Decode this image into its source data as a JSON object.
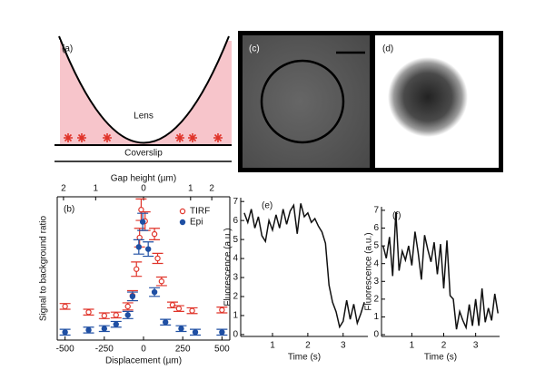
{
  "diagram": {
    "label": "(a)",
    "lens_label": "Lens",
    "coverslip_label": "Coverslip"
  },
  "images": [
    {
      "label": "(c)"
    },
    {
      "label": "(d)"
    }
  ],
  "chart_data": [
    {
      "type": "scatter",
      "panel_label": "(b)",
      "xlabel": "Displacement (µm)",
      "ylabel": "Signal to background ratio",
      "x2label": "Gap height (µm)",
      "xlim": [
        -550,
        550
      ],
      "xticks": [
        -500,
        -250,
        0,
        250,
        500
      ],
      "ylim": [
        0,
        20
      ],
      "x2ticks": [
        {
          "value": -510,
          "label": "2"
        },
        {
          "value": -305,
          "label": "1"
        },
        {
          "value": 0,
          "label": "0"
        },
        {
          "value": 300,
          "label": "1"
        },
        {
          "value": 435,
          "label": "2"
        }
      ],
      "legend": "upper right",
      "series": [
        {
          "name": "TIRF",
          "color": "#e0342a",
          "marker": "open",
          "x": [
            -500,
            -350,
            -250,
            -175,
            -100,
            -70,
            -45,
            -25,
            -15,
            10,
            70,
            90,
            115,
            185,
            225,
            310,
            500
          ],
          "values": [
            4.7,
            3.9,
            3.4,
            3.5,
            4.7,
            6.2,
            9.9,
            14.3,
            18.2,
            16.6,
            14.8,
            11.4,
            8.2,
            4.9,
            4.4,
            4.1,
            4.2
          ],
          "errors": [
            0.4,
            0.4,
            0.4,
            0.4,
            0.5,
            0.7,
            1.0,
            1.3,
            1.5,
            1.3,
            0.8,
            0.7,
            0.6,
            0.4,
            0.4,
            0.4,
            0.4
          ]
        },
        {
          "name": "Epi",
          "color": "#1f4fa3",
          "marker": "filled",
          "x": [
            -500,
            -350,
            -250,
            -175,
            -100,
            -70,
            -30,
            -5,
            30,
            70,
            140,
            240,
            330,
            500
          ],
          "values": [
            1.1,
            1.4,
            1.6,
            2.2,
            3.5,
            6.1,
            13.0,
            16.5,
            12.7,
            6.7,
            2.5,
            1.6,
            1.1,
            1.1
          ],
          "errors": [
            0.4,
            0.4,
            0.4,
            0.4,
            0.5,
            0.6,
            1.0,
            1.2,
            1.0,
            0.6,
            0.4,
            0.4,
            0.4,
            0.4
          ]
        }
      ]
    },
    {
      "type": "line",
      "panel_label": "(e)",
      "xlabel": "Time (s)",
      "ylabel": "Fluorescence (a.u.)",
      "color": "#111111",
      "xlim": [
        0.1,
        3.7
      ],
      "xticks": [
        1,
        2,
        3
      ],
      "ylim": [
        -0.1,
        7.2
      ],
      "yticks": [
        0,
        1,
        2,
        3,
        4,
        5,
        6,
        7
      ],
      "x": [
        0.2,
        0.3,
        0.4,
        0.5,
        0.6,
        0.7,
        0.8,
        0.9,
        1.0,
        1.1,
        1.2,
        1.3,
        1.4,
        1.5,
        1.6,
        1.7,
        1.8,
        1.9,
        2.0,
        2.1,
        2.2,
        2.3,
        2.4,
        2.5,
        2.6,
        2.7,
        2.8,
        2.9,
        3.0,
        3.1,
        3.2,
        3.3,
        3.4,
        3.5,
        3.6
      ],
      "values": [
        6.4,
        5.9,
        6.6,
        5.6,
        6.2,
        5.2,
        4.9,
        6.0,
        5.5,
        6.3,
        5.6,
        6.6,
        5.8,
        6.5,
        6.8,
        5.3,
        6.9,
        6.2,
        6.4,
        5.9,
        6.1,
        5.7,
        5.4,
        4.8,
        2.6,
        1.7,
        1.2,
        0.4,
        0.7,
        1.8,
        0.8,
        1.6,
        0.6,
        1.1,
        1.7
      ]
    },
    {
      "type": "line",
      "panel_label": "(f)",
      "xlabel": "Time (s)",
      "ylabel": "Fluorescence (a.u.)",
      "color": "#111111",
      "xlim": [
        0.05,
        3.75
      ],
      "xticks": [
        1,
        2,
        3
      ],
      "ylim": [
        -0.1,
        7.2
      ],
      "yticks": [
        0,
        1,
        2,
        3,
        4,
        5,
        6,
        7
      ],
      "x": [
        0.1,
        0.2,
        0.3,
        0.4,
        0.5,
        0.6,
        0.7,
        0.8,
        0.9,
        1.0,
        1.1,
        1.2,
        1.3,
        1.4,
        1.5,
        1.6,
        1.7,
        1.8,
        1.9,
        2.0,
        2.1,
        2.2,
        2.3,
        2.4,
        2.5,
        2.6,
        2.7,
        2.8,
        2.9,
        3.0,
        3.1,
        3.2,
        3.3,
        3.4,
        3.5,
        3.6,
        3.7
      ],
      "values": [
        5.0,
        4.3,
        5.5,
        3.3,
        6.9,
        3.6,
        4.7,
        4.2,
        5.0,
        3.9,
        5.8,
        4.6,
        3.1,
        5.6,
        4.8,
        4.1,
        5.2,
        3.4,
        5.1,
        2.6,
        5.3,
        2.2,
        2.0,
        0.3,
        1.3,
        0.8,
        0.4,
        1.7,
        0.5,
        2.0,
        0.5,
        2.6,
        0.7,
        1.5,
        0.8,
        2.3,
        1.2
      ]
    }
  ]
}
